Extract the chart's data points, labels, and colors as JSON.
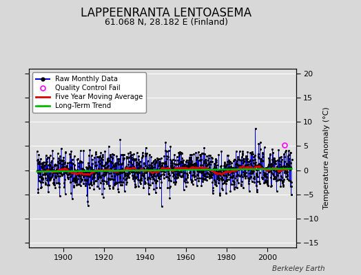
{
  "title": "LAPPEENRANTA LENTOASEMA",
  "subtitle": "61.068 N, 28.182 E (Finland)",
  "ylabel": "Temperature Anomaly (°C)",
  "credit": "Berkeley Earth",
  "ylim": [
    -16,
    21
  ],
  "yticks": [
    -15,
    -10,
    -5,
    0,
    5,
    10,
    15,
    20
  ],
  "xlim": [
    1883,
    2014
  ],
  "xticks": [
    1900,
    1920,
    1940,
    1960,
    1980,
    2000
  ],
  "year_start": 1887,
  "year_end": 2011,
  "bg_color": "#d8d8d8",
  "plot_bg_color": "#e0e0e0",
  "raw_color": "#0000cc",
  "marker_color": "#000000",
  "ma_color": "#dd0000",
  "trend_color": "#00bb00",
  "qc_color": "#ff00ff",
  "grid_color": "#ffffff",
  "legend_bg": "#ffffff",
  "title_fontsize": 12,
  "subtitle_fontsize": 9,
  "axis_fontsize": 8,
  "ylabel_fontsize": 8
}
